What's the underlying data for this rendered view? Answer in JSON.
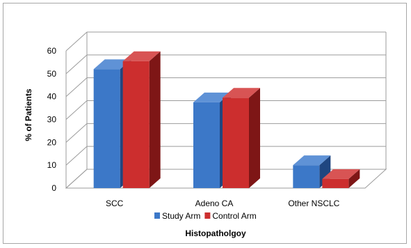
{
  "chart_data": {
    "type": "bar",
    "categories": [
      "SCC",
      "Adeno CA",
      "Other NSCLC"
    ],
    "series": [
      {
        "name": "Study Arm",
        "values": [
          52,
          37.5,
          10
        ]
      },
      {
        "name": "Control Arm",
        "values": [
          55.5,
          39.5,
          4
        ]
      }
    ],
    "title": "",
    "xlabel": "Histopatholgoy",
    "ylabel": "% of Patients",
    "ylim": [
      0,
      60
    ],
    "yticks": [
      0,
      10,
      20,
      30,
      40,
      50,
      60
    ],
    "grid": true,
    "legend": "bottom"
  },
  "colors": {
    "series": [
      {
        "front": "#3c78c8",
        "side": "#1f4680",
        "top": "#5f92d6"
      },
      {
        "front": "#cc2e2e",
        "side": "#7e1616",
        "top": "#d85454"
      }
    ],
    "grid": "#9b9b9b",
    "floor": "#ffffff"
  }
}
